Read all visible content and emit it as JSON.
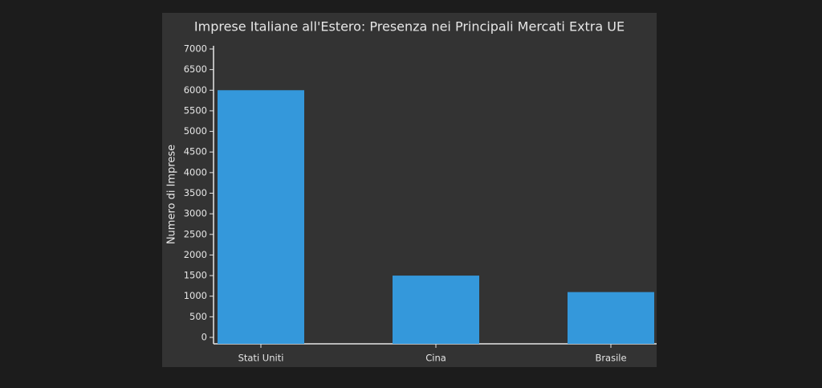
{
  "chart_data": {
    "type": "bar",
    "title": "Imprese Italiane all'Estero: Presenza nei Principali Mercati Extra UE",
    "y_label": "Numero di Imprese",
    "categories": [
      "Stati Uniti",
      "Cina",
      "Brasile"
    ],
    "values": [
      6000,
      1500,
      1100
    ],
    "color": "#3498db",
    "ylim": [
      0,
      7000
    ],
    "yticks": [
      0,
      500,
      1000,
      1500,
      2000,
      2500,
      3000,
      3500,
      4000,
      4500,
      5000,
      5500,
      6000,
      6500,
      7000
    ]
  }
}
